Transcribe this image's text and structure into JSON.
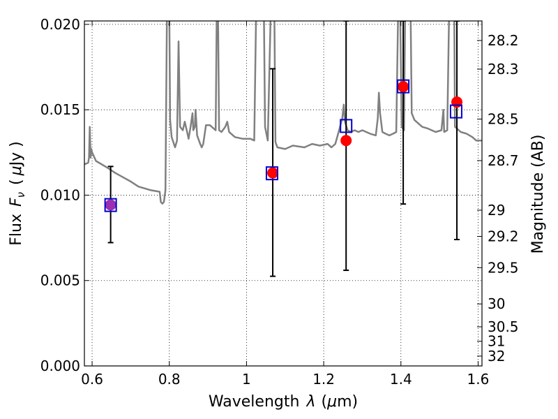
{
  "chart_data": {
    "type": "scatter",
    "xlabel_main": "Wavelength",
    "xlabel_sym": "λ",
    "xlabel_unit_open": "(",
    "xlabel_unit_mu": "μ",
    "xlabel_unit_rest": "m)",
    "ylabel_main": "Flux",
    "ylabel_sym": "F",
    "ylabel_sub": "ν",
    "ylabel_unit_open": "(",
    "ylabel_unit_mu": "μ",
    "ylabel_unit_rest": "Jy )",
    "ylabel_right": "Magnitude (AB)",
    "xlim": [
      0.58,
      1.61
    ],
    "ylim": [
      0.0,
      0.0202
    ],
    "grid": true,
    "xticks": [
      {
        "v": 0.6,
        "label": "0.6"
      },
      {
        "v": 0.8,
        "label": "0.8"
      },
      {
        "v": 1.0,
        "label": "1"
      },
      {
        "v": 1.2,
        "label": "1.2"
      },
      {
        "v": 1.4,
        "label": "1.4"
      },
      {
        "v": 1.6,
        "label": "1.6"
      }
    ],
    "yticks": [
      {
        "v": 0.0,
        "label": "0.000"
      },
      {
        "v": 0.005,
        "label": "0.005"
      },
      {
        "v": 0.01,
        "label": "0.010"
      },
      {
        "v": 0.015,
        "label": "0.015"
      },
      {
        "v": 0.02,
        "label": "0.020"
      }
    ],
    "mag_ticks": [
      "28.2",
      "28.3",
      "28.5",
      "28.7",
      "29",
      "29.2",
      "29.5",
      "30",
      "30.5",
      "31",
      "32"
    ],
    "spectrum_color": "#808080",
    "model_color": "#0000cc",
    "observed_color": "#ff0000",
    "blend_color": "#9b30b0",
    "model_fluxes": [
      {
        "x": 0.648,
        "y": 0.00942
      },
      {
        "x": 1.066,
        "y": 0.01128
      },
      {
        "x": 1.258,
        "y": 0.01405
      },
      {
        "x": 1.406,
        "y": 0.01637
      },
      {
        "x": 1.543,
        "y": 0.0149
      }
    ],
    "observed_fluxes": [
      {
        "x": 0.648,
        "y": 0.00943,
        "ylo": 0.00722,
        "yhi": 0.01168
      },
      {
        "x": 1.068,
        "y": 0.0113,
        "ylo": 0.00525,
        "yhi": 0.0174
      },
      {
        "x": 1.258,
        "y": 0.0132,
        "ylo": 0.0056,
        "yhi": 0.0202
      },
      {
        "x": 1.406,
        "y": 0.01635,
        "ylo": 0.00948,
        "yhi": 0.0202
      },
      {
        "x": 1.545,
        "y": 0.01545,
        "ylo": 0.0074,
        "yhi": 0.0202
      }
    ],
    "spectrum": [
      [
        0.58,
        0.0118
      ],
      [
        0.59,
        0.0119
      ],
      [
        0.592,
        0.0122
      ],
      [
        0.594,
        0.014
      ],
      [
        0.596,
        0.0122
      ],
      [
        0.598,
        0.0127
      ],
      [
        0.6,
        0.0125
      ],
      [
        0.61,
        0.012
      ],
      [
        0.64,
        0.0116
      ],
      [
        0.66,
        0.0113
      ],
      [
        0.7,
        0.0108
      ],
      [
        0.72,
        0.0105
      ],
      [
        0.75,
        0.0103
      ],
      [
        0.775,
        0.0102
      ],
      [
        0.778,
        0.0096
      ],
      [
        0.782,
        0.0095
      ],
      [
        0.786,
        0.0096
      ],
      [
        0.79,
        0.0103
      ],
      [
        0.794,
        0.021
      ],
      [
        0.8,
        0.021
      ],
      [
        0.802,
        0.0144
      ],
      [
        0.806,
        0.0134
      ],
      [
        0.815,
        0.0128
      ],
      [
        0.82,
        0.0132
      ],
      [
        0.824,
        0.019
      ],
      [
        0.828,
        0.014
      ],
      [
        0.835,
        0.0138
      ],
      [
        0.84,
        0.0143
      ],
      [
        0.845,
        0.0138
      ],
      [
        0.85,
        0.0133
      ],
      [
        0.855,
        0.014
      ],
      [
        0.86,
        0.0148
      ],
      [
        0.862,
        0.0138
      ],
      [
        0.866,
        0.014
      ],
      [
        0.868,
        0.015
      ],
      [
        0.872,
        0.0135
      ],
      [
        0.88,
        0.013
      ],
      [
        0.884,
        0.0128
      ],
      [
        0.888,
        0.013
      ],
      [
        0.895,
        0.0141
      ],
      [
        0.905,
        0.0141
      ],
      [
        0.915,
        0.0139
      ],
      [
        0.92,
        0.0138
      ],
      [
        0.923,
        0.021
      ],
      [
        0.926,
        0.021
      ],
      [
        0.929,
        0.0138
      ],
      [
        0.935,
        0.0137
      ],
      [
        0.945,
        0.014
      ],
      [
        0.95,
        0.0143
      ],
      [
        0.955,
        0.0137
      ],
      [
        0.96,
        0.0136
      ],
      [
        0.97,
        0.0134
      ],
      [
        0.99,
        0.0133
      ],
      [
        1.01,
        0.0133
      ],
      [
        1.02,
        0.0132
      ],
      [
        1.025,
        0.021
      ],
      [
        1.045,
        0.021
      ],
      [
        1.048,
        0.014
      ],
      [
        1.055,
        0.0132
      ],
      [
        1.063,
        0.021
      ],
      [
        1.072,
        0.021
      ],
      [
        1.075,
        0.0131
      ],
      [
        1.08,
        0.0128
      ],
      [
        1.1,
        0.0127
      ],
      [
        1.12,
        0.0129
      ],
      [
        1.15,
        0.0128
      ],
      [
        1.17,
        0.013
      ],
      [
        1.19,
        0.0129
      ],
      [
        1.21,
        0.013
      ],
      [
        1.22,
        0.0128
      ],
      [
        1.23,
        0.013
      ],
      [
        1.24,
        0.0138
      ],
      [
        1.248,
        0.0145
      ],
      [
        1.252,
        0.0153
      ],
      [
        1.255,
        0.0143
      ],
      [
        1.262,
        0.0138
      ],
      [
        1.27,
        0.0137
      ],
      [
        1.28,
        0.0138
      ],
      [
        1.29,
        0.0137
      ],
      [
        1.3,
        0.0138
      ],
      [
        1.32,
        0.0136
      ],
      [
        1.335,
        0.0135
      ],
      [
        1.34,
        0.0145
      ],
      [
        1.343,
        0.016
      ],
      [
        1.346,
        0.0148
      ],
      [
        1.352,
        0.0137
      ],
      [
        1.36,
        0.0136
      ],
      [
        1.37,
        0.0135
      ],
      [
        1.38,
        0.0136
      ],
      [
        1.388,
        0.0137
      ],
      [
        1.393,
        0.021
      ],
      [
        1.398,
        0.021
      ],
      [
        1.402,
        0.014
      ],
      [
        1.408,
        0.0138
      ],
      [
        1.411,
        0.021
      ],
      [
        1.425,
        0.021
      ],
      [
        1.428,
        0.0148
      ],
      [
        1.435,
        0.0144
      ],
      [
        1.445,
        0.0142
      ],
      [
        1.455,
        0.014
      ],
      [
        1.47,
        0.0139
      ],
      [
        1.49,
        0.0137
      ],
      [
        1.505,
        0.0138
      ],
      [
        1.51,
        0.015
      ],
      [
        1.512,
        0.0137
      ],
      [
        1.52,
        0.0138
      ],
      [
        1.525,
        0.021
      ],
      [
        1.538,
        0.021
      ],
      [
        1.54,
        0.014
      ],
      [
        1.555,
        0.0137
      ],
      [
        1.57,
        0.0136
      ],
      [
        1.585,
        0.0134
      ],
      [
        1.595,
        0.0132
      ],
      [
        1.61,
        0.0132
      ]
    ]
  }
}
